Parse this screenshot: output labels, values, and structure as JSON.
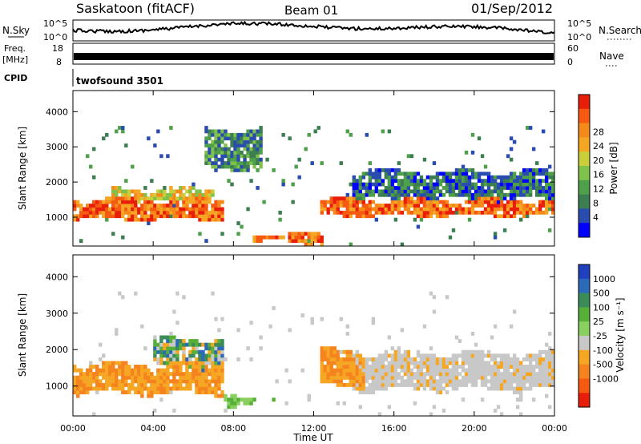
{
  "header": {
    "station": "Saskatoon (fitACF)",
    "beam": "Beam 01",
    "date": "01/Sep/2012"
  },
  "top_panels": {
    "nsky_label": "N.Sky",
    "nsky_ticks": [
      "10^5",
      "10^0"
    ],
    "nsearch_label": "N.Search",
    "nsearch_ticks": [
      "10^5",
      "10^0"
    ],
    "freq_label": "Freq.",
    "freq_unit": "[MHz]",
    "freq_ticks": [
      "18",
      "8"
    ],
    "nave_label": "Nave",
    "nave_ticks": [
      "60",
      "0"
    ],
    "cpid_label": "CPID",
    "cpid_value": "twofsound 3501"
  },
  "chart_data": [
    {
      "type": "heatmap",
      "name": "power",
      "ylabel": "Slant Range [km]",
      "ylim": [
        180,
        4600
      ],
      "yticks": [
        "1000",
        "2000",
        "3000",
        "4000"
      ],
      "xlim_hours": [
        0,
        24
      ],
      "colorbar": {
        "label": "Power [dB]",
        "ticks": [
          "4",
          "8",
          "12",
          "16",
          "20",
          "24",
          "28"
        ],
        "colors": [
          "#0000ff",
          "#2a4caf",
          "#3c7d52",
          "#4fa04a",
          "#7fc24a",
          "#c9cf3a",
          "#f5a623",
          "#f58a1a",
          "#f55a10",
          "#e81e0a"
        ]
      },
      "features": [
        {
          "t": [
            0.0,
            7.5
          ],
          "r": [
            950,
            1500
          ],
          "level": 9
        },
        {
          "t": [
            2.0,
            7.0
          ],
          "r": [
            1450,
            1800
          ],
          "level": 7
        },
        {
          "t": [
            6.5,
            9.5
          ],
          "r": [
            2400,
            3500
          ],
          "level": 4
        },
        {
          "t": [
            9.0,
            12.5
          ],
          "r": [
            280,
            520
          ],
          "level": 9
        },
        {
          "t": [
            12.3,
            24.0
          ],
          "r": [
            1050,
            1500
          ],
          "level": 9
        },
        {
          "t": [
            14.0,
            24.0
          ],
          "r": [
            1500,
            2300
          ],
          "level": 3
        }
      ]
    },
    {
      "type": "heatmap",
      "name": "velocity",
      "ylabel": "Slant Range [km]",
      "ylim": [
        180,
        4600
      ],
      "yticks": [
        "1000",
        "2000",
        "3000",
        "4000"
      ],
      "xlabel": "Time UT",
      "xticks": [
        "00:00",
        "04:00",
        "08:00",
        "12:00",
        "16:00",
        "20:00",
        "00:00"
      ],
      "colorbar": {
        "label": "Velocity [m s⁻¹]",
        "ticks": [
          "1000",
          "500",
          "100",
          "25",
          "-25",
          "-100",
          "-500",
          "-1000"
        ],
        "colors": [
          "#2040c0",
          "#2a6ab8",
          "#3c8c5a",
          "#56b038",
          "#8ad060",
          "#c8c8c8",
          "#f5a623",
          "#f5841f",
          "#f55a10",
          "#e81e0a"
        ]
      },
      "features": [
        {
          "t": [
            0.0,
            7.5
          ],
          "r": [
            800,
            1600
          ],
          "class": "negative"
        },
        {
          "t": [
            4.0,
            7.5
          ],
          "r": [
            1500,
            2300
          ],
          "class": "mixed"
        },
        {
          "t": [
            7.5,
            10.0
          ],
          "r": [
            500,
            700
          ],
          "class": "positive"
        },
        {
          "t": [
            12.3,
            14.5
          ],
          "r": [
            1000,
            2000
          ],
          "class": "negative"
        },
        {
          "t": [
            14.0,
            24.0
          ],
          "r": [
            900,
            1900
          ],
          "class": "low"
        }
      ]
    }
  ]
}
